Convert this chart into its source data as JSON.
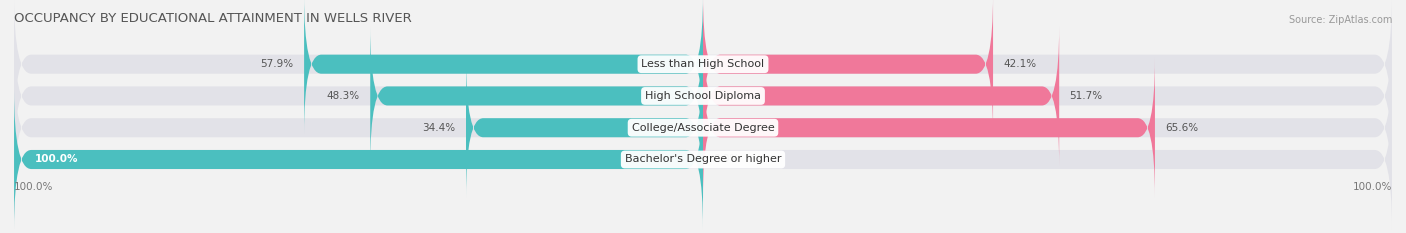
{
  "title": "OCCUPANCY BY EDUCATIONAL ATTAINMENT IN WELLS RIVER",
  "source": "Source: ZipAtlas.com",
  "categories": [
    "Less than High School",
    "High School Diploma",
    "College/Associate Degree",
    "Bachelor's Degree or higher"
  ],
  "owner_values": [
    57.9,
    48.3,
    34.4,
    100.0
  ],
  "renter_values": [
    42.1,
    51.7,
    65.6,
    0.0
  ],
  "owner_color": "#4bbfbf",
  "renter_color": "#f0789a",
  "bg_color": "#f2f2f2",
  "bar_bg_color": "#e2e2e8",
  "title_fontsize": 9.5,
  "label_fontsize": 8,
  "tick_fontsize": 7.5,
  "source_fontsize": 7,
  "legend_fontsize": 8,
  "bar_height": 0.6,
  "figsize": [
    14.06,
    2.33
  ],
  "dpi": 100
}
